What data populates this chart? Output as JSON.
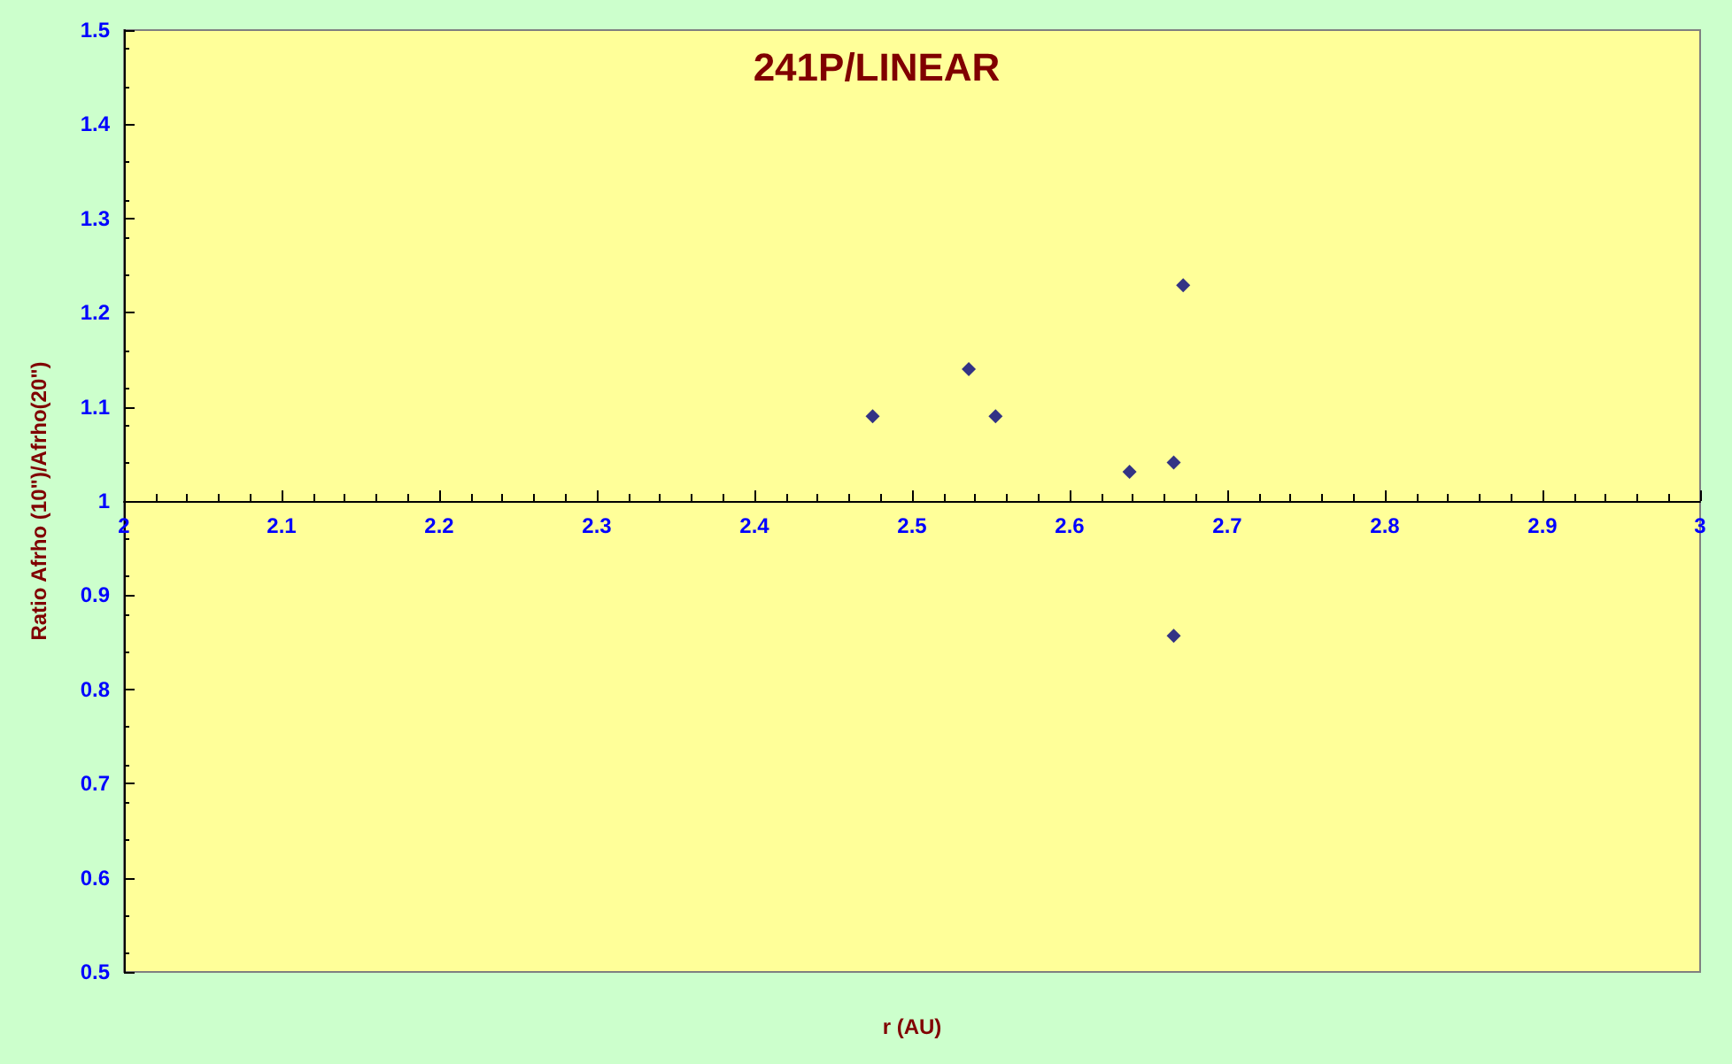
{
  "chart_data": {
    "type": "scatter",
    "title": "241P/LINEAR",
    "xlabel": "r (AU)",
    "ylabel": "Ratio Afrho (10\")/Afrho(20\")",
    "x": [
      2.475,
      2.536,
      2.553,
      2.638,
      2.666,
      2.672,
      2.666
    ],
    "values": [
      1.09,
      1.14,
      1.09,
      1.031,
      1.041,
      1.229,
      0.857
    ],
    "color": "#000080",
    "marker": "diamond",
    "xlim": [
      2,
      3
    ],
    "xticks": [
      2,
      2.1,
      2.2,
      2.3,
      2.4,
      2.5,
      2.6,
      2.7,
      2.8,
      2.9,
      3
    ],
    "ylim": [
      0.5,
      1.5
    ],
    "yticks": [
      0.5,
      0.6,
      0.7,
      0.8,
      0.9,
      1,
      1.1,
      1.2,
      1.3,
      1.4,
      1.5
    ]
  }
}
